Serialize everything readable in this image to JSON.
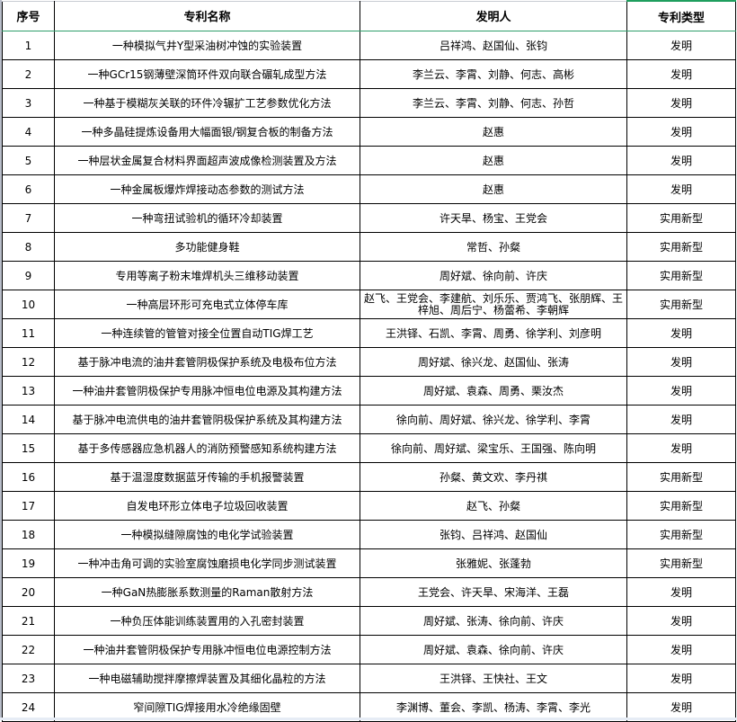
{
  "headers": {
    "index": "序号",
    "name": "专利名称",
    "inventors": "发明人",
    "type": "专利类型"
  },
  "rows": [
    {
      "no": "1",
      "name": "一种模拟气井Y型采油树冲蚀的实验装置",
      "inventors": "吕祥鸿、赵国仙、张钧",
      "type": "发明"
    },
    {
      "no": "2",
      "name": "一种GCr15钢薄壁深筒环件双向联合碾轧成型方法",
      "inventors": "李兰云、李霄、刘静、何志、高彬",
      "type": "发明"
    },
    {
      "no": "3",
      "name": "一种基于模糊灰关联的环件冷辗扩工艺参数优化方法",
      "inventors": "李兰云、李霄、刘静、何志、孙哲",
      "type": "发明"
    },
    {
      "no": "4",
      "name": "一种多晶硅提炼设备用大幅面银/钢复合板的制备方法",
      "inventors": "赵惠",
      "type": "发明"
    },
    {
      "no": "5",
      "name": "一种层状金属复合材料界面超声波成像检测装置及方法",
      "inventors": "赵惠",
      "type": "发明"
    },
    {
      "no": "6",
      "name": "一种金属板爆炸焊接动态参数的测试方法",
      "inventors": "赵惠",
      "type": "发明"
    },
    {
      "no": "7",
      "name": "一种弯扭试验机的循环冷却装置",
      "inventors": "许天旱、杨宝、王党会",
      "type": "实用新型"
    },
    {
      "no": "8",
      "name": "多功能健身鞋",
      "inventors": "常哲、孙粲",
      "type": "实用新型"
    },
    {
      "no": "9",
      "name": "专用等离子粉末堆焊机头三维移动装置",
      "inventors": "周好斌、徐向前、许庆",
      "type": "实用新型"
    },
    {
      "no": "10",
      "name": "一种高层环形可充电式立体停车库",
      "inventors": "赵飞、王党会、李建航、刘乐乐、贾鸿飞、张朋辉、王梓旭、周后宁、杨蕾希、李朝辉",
      "type": "实用新型"
    },
    {
      "no": "11",
      "name": "一种连续管的管管对接全位置自动TIG焊工艺",
      "inventors": "王洪铎、石凯、李霄、周勇、徐学利、刘彦明",
      "type": "发明"
    },
    {
      "no": "12",
      "name": "基于脉冲电流的油井套管阴极保护系统及电极布位方法",
      "inventors": "周好斌、徐兴龙、赵国仙、张涛",
      "type": "发明"
    },
    {
      "no": "13",
      "name": "一种油井套管阴极保护专用脉冲恒电位电源及其构建方法",
      "inventors": "周好斌、袁森、周勇、栗汝杰",
      "type": "发明"
    },
    {
      "no": "14",
      "name": "基于脉冲电流供电的油井套管阴极保护系统及其构建方法",
      "inventors": "徐向前、周好斌、徐兴龙、徐学利、李霄",
      "type": "发明"
    },
    {
      "no": "15",
      "name": "基于多传感器应急机器人的消防预警感知系统构建方法",
      "inventors": "徐向前、周好斌、梁宝乐、王国强、陈向明",
      "type": "发明"
    },
    {
      "no": "16",
      "name": "基于温湿度数据蓝牙传输的手机报警装置",
      "inventors": "孙粲、黄文欢、李丹祺",
      "type": "实用新型"
    },
    {
      "no": "17",
      "name": "自发电环形立体电子垃圾回收装置",
      "inventors": "赵飞、孙粲",
      "type": "实用新型"
    },
    {
      "no": "18",
      "name": "一种模拟缝隙腐蚀的电化学试验装置",
      "inventors": "张钧、吕祥鸿、赵国仙",
      "type": "实用新型"
    },
    {
      "no": "19",
      "name": "一种冲击角可调的实验室腐蚀磨损电化学同步测试装置",
      "inventors": "张雅妮、张蓬勃",
      "type": "实用新型"
    },
    {
      "no": "20",
      "name": "一种GaN热膨胀系数测量的Raman散射方法",
      "inventors": "王党会、许天旱、宋海洋、王磊",
      "type": "发明"
    },
    {
      "no": "21",
      "name": "一种负压体能训练装置用的入孔密封装置",
      "inventors": "周好斌、张涛、徐向前、许庆",
      "type": "发明"
    },
    {
      "no": "22",
      "name": "一种油井套管阴极保护专用脉冲恒电位电源控制方法",
      "inventors": "周好斌、袁森、徐向前、许庆",
      "type": "发明"
    },
    {
      "no": "23",
      "name": "一种电磁辅助搅拌摩擦焊装置及其细化晶粒的方法",
      "inventors": "王洪铎、王快社、王文",
      "type": "发明"
    },
    {
      "no": "24",
      "name": "窄间隙TIG焊接用水冷绝缘固壁",
      "inventors": "李渊博、董会、李凯、杨涛、李霄、李光",
      "type": "发明"
    }
  ]
}
